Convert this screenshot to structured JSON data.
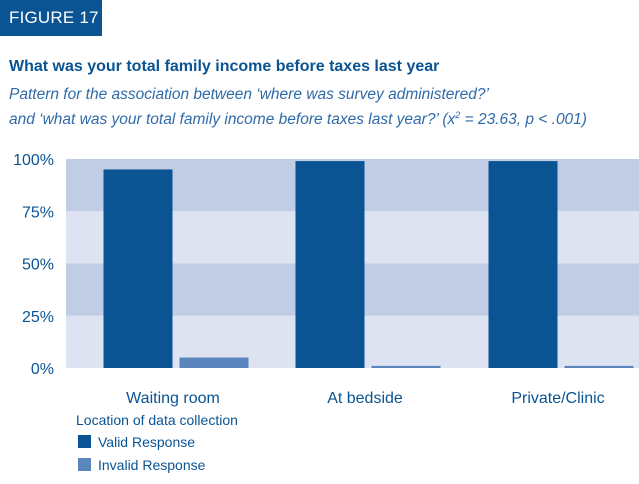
{
  "figure_label": "FIGURE 17",
  "title": "What was your total family income before taxes last year",
  "subtitle_line1": "Pattern for the association between ‘where was survey administered?’",
  "subtitle_line2_prefix": "and ‘what was your total family income before taxes last year?’ (",
  "subtitle_chi": "x",
  "subtitle_sup": "2",
  "subtitle_line2_suffix": " = 23.63, p < .001)",
  "chart_data": {
    "type": "bar",
    "title": "What was your total family income before taxes last year",
    "xlabel": "Location of data collection",
    "ylabel": "",
    "categories": [
      "Waiting room",
      "At bedside",
      "Private/Clinic"
    ],
    "yticks": [
      "0%",
      "25%",
      "50%",
      "75%",
      "100%"
    ],
    "ylim": [
      0,
      100
    ],
    "grid": "horizontal alternating bands",
    "legend_position": "bottom-left",
    "series": [
      {
        "name": "Valid Response",
        "color": "#0a5494",
        "values": [
          95,
          99,
          99
        ]
      },
      {
        "name": "Invalid Response",
        "color": "#5b85bd",
        "values": [
          5,
          1,
          1
        ]
      }
    ],
    "band_colors": [
      "#dde3f1",
      "#c0cde4"
    ]
  }
}
